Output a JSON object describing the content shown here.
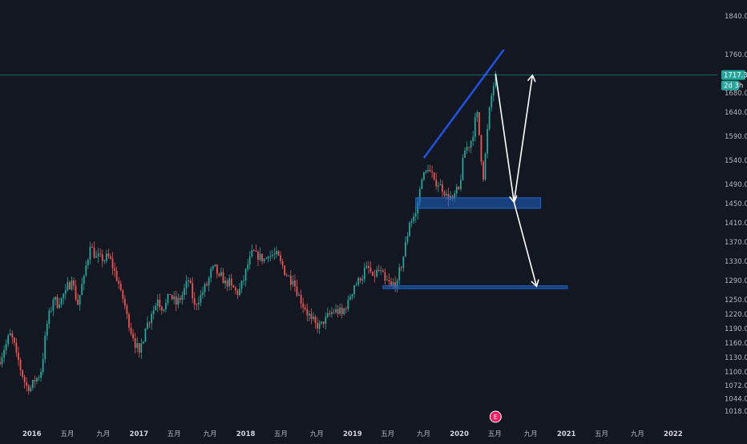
{
  "chart_data": {
    "type": "candlestick",
    "title": "",
    "xlabel": "",
    "ylabel": "",
    "ylim": [
      1000,
      1860
    ],
    "xlim": [
      "2015-09-14",
      "2022-06-01"
    ],
    "grid": false,
    "legend": "none",
    "y_ticks": [
      {
        "value": 1840,
        "label": "1840.00"
      },
      {
        "value": 1760,
        "label": "1760.00"
      },
      {
        "value": 1680,
        "label": "1680.00"
      },
      {
        "value": 1640,
        "label": "1640.00"
      },
      {
        "value": 1590,
        "label": "1590.00"
      },
      {
        "value": 1540,
        "label": "1540.00"
      },
      {
        "value": 1490,
        "label": "1490.00"
      },
      {
        "value": 1450,
        "label": "1450.00"
      },
      {
        "value": 1410,
        "label": "1410.00"
      },
      {
        "value": 1370,
        "label": "1370.00"
      },
      {
        "value": 1330,
        "label": "1330.00"
      },
      {
        "value": 1290,
        "label": "1290.00"
      },
      {
        "value": 1250,
        "label": "1250.00"
      },
      {
        "value": 1220,
        "label": "1220.00"
      },
      {
        "value": 1190,
        "label": "1190.00"
      },
      {
        "value": 1160,
        "label": "1160.00"
      },
      {
        "value": 1130,
        "label": "1130.00"
      },
      {
        "value": 1100,
        "label": "1100.00"
      },
      {
        "value": 1072,
        "label": "1072.00"
      },
      {
        "value": 1044,
        "label": "1044.00"
      },
      {
        "value": 1018,
        "label": "1018.00"
      }
    ],
    "x_ticks": [
      {
        "date": "2015-09-01",
        "label": "九月",
        "bold": false
      },
      {
        "date": "2016-01-01",
        "label": "2016",
        "bold": true
      },
      {
        "date": "2016-05-01",
        "label": "五月",
        "bold": false
      },
      {
        "date": "2016-09-01",
        "label": "九月",
        "bold": false
      },
      {
        "date": "2017-01-01",
        "label": "2017",
        "bold": true
      },
      {
        "date": "2017-05-01",
        "label": "五月",
        "bold": false
      },
      {
        "date": "2017-09-01",
        "label": "九月",
        "bold": false
      },
      {
        "date": "2018-01-01",
        "label": "2018",
        "bold": true
      },
      {
        "date": "2018-05-01",
        "label": "五月",
        "bold": false
      },
      {
        "date": "2018-09-01",
        "label": "九月",
        "bold": false
      },
      {
        "date": "2019-01-01",
        "label": "2019",
        "bold": true
      },
      {
        "date": "2019-05-01",
        "label": "五月",
        "bold": false
      },
      {
        "date": "2019-09-01",
        "label": "九月",
        "bold": false
      },
      {
        "date": "2020-01-01",
        "label": "2020",
        "bold": true
      },
      {
        "date": "2020-05-01",
        "label": "五月",
        "bold": false
      },
      {
        "date": "2020-09-01",
        "label": "九月",
        "bold": false
      },
      {
        "date": "2021-01-01",
        "label": "2021",
        "bold": true
      },
      {
        "date": "2021-05-01",
        "label": "五月",
        "bold": false
      },
      {
        "date": "2021-09-01",
        "label": "九月",
        "bold": false
      },
      {
        "date": "2022-01-01",
        "label": "2022",
        "bold": true
      }
    ],
    "current_price": {
      "value": 1717.3,
      "label": "1717.30",
      "countdown": "2d 3h"
    },
    "series": [
      {
        "values": [
          [
            "2015-09-14",
            1120,
            1145
          ],
          [
            "2015-10-05",
            1145,
            1180
          ],
          [
            "2015-10-26",
            1180,
            1140
          ],
          [
            "2015-11-16",
            1140,
            1090
          ],
          [
            "2015-12-07",
            1090,
            1060
          ],
          [
            "2015-12-28",
            1060,
            1080
          ],
          [
            "2016-01-18",
            1080,
            1100
          ],
          [
            "2016-02-08",
            1100,
            1200
          ],
          [
            "2016-02-29",
            1200,
            1250
          ],
          [
            "2016-03-21",
            1250,
            1240
          ],
          [
            "2016-04-11",
            1240,
            1270
          ],
          [
            "2016-05-02",
            1270,
            1290
          ],
          [
            "2016-05-23",
            1290,
            1240
          ],
          [
            "2016-06-13",
            1240,
            1300
          ],
          [
            "2016-07-04",
            1300,
            1360
          ],
          [
            "2016-07-25",
            1360,
            1340
          ],
          [
            "2016-08-15",
            1340,
            1330
          ],
          [
            "2016-09-05",
            1330,
            1340
          ],
          [
            "2016-09-26",
            1340,
            1310
          ],
          [
            "2016-10-17",
            1310,
            1270
          ],
          [
            "2016-11-07",
            1270,
            1220
          ],
          [
            "2016-11-28",
            1220,
            1170
          ],
          [
            "2016-12-19",
            1170,
            1140
          ],
          [
            "2017-01-09",
            1140,
            1190
          ],
          [
            "2017-01-30",
            1190,
            1220
          ],
          [
            "2017-02-20",
            1220,
            1250
          ],
          [
            "2017-03-13",
            1250,
            1230
          ],
          [
            "2017-04-03",
            1230,
            1260
          ],
          [
            "2017-04-24",
            1260,
            1240
          ],
          [
            "2017-05-15",
            1240,
            1260
          ],
          [
            "2017-06-05",
            1260,
            1290
          ],
          [
            "2017-06-26",
            1290,
            1240
          ],
          [
            "2017-07-17",
            1240,
            1260
          ],
          [
            "2017-08-07",
            1260,
            1280
          ],
          [
            "2017-08-28",
            1280,
            1320
          ],
          [
            "2017-09-18",
            1320,
            1300
          ],
          [
            "2017-10-09",
            1300,
            1290
          ],
          [
            "2017-10-30",
            1290,
            1280
          ],
          [
            "2017-11-20",
            1280,
            1260
          ],
          [
            "2017-12-11",
            1260,
            1290
          ],
          [
            "2018-01-01",
            1290,
            1340
          ],
          [
            "2018-01-22",
            1340,
            1350
          ],
          [
            "2018-02-12",
            1350,
            1330
          ],
          [
            "2018-03-05",
            1330,
            1340
          ],
          [
            "2018-03-26",
            1340,
            1345
          ],
          [
            "2018-04-16",
            1345,
            1330
          ],
          [
            "2018-05-07",
            1330,
            1300
          ],
          [
            "2018-05-28",
            1300,
            1290
          ],
          [
            "2018-06-18",
            1290,
            1260
          ],
          [
            "2018-07-09",
            1260,
            1230
          ],
          [
            "2018-07-30",
            1230,
            1210
          ],
          [
            "2018-08-20",
            1210,
            1190
          ],
          [
            "2018-09-10",
            1190,
            1200
          ],
          [
            "2018-10-01",
            1200,
            1220
          ],
          [
            "2018-10-22",
            1220,
            1230
          ],
          [
            "2018-11-12",
            1230,
            1220
          ],
          [
            "2018-12-03",
            1220,
            1250
          ],
          [
            "2018-12-24",
            1250,
            1280
          ],
          [
            "2019-01-14",
            1280,
            1290
          ],
          [
            "2019-02-04",
            1290,
            1320
          ],
          [
            "2019-02-25",
            1320,
            1300
          ],
          [
            "2019-03-18",
            1300,
            1310
          ],
          [
            "2019-04-08",
            1310,
            1290
          ],
          [
            "2019-04-29",
            1290,
            1280
          ],
          [
            "2019-05-20",
            1280,
            1290
          ],
          [
            "2019-06-10",
            1290,
            1340
          ],
          [
            "2019-07-01",
            1340,
            1410
          ],
          [
            "2019-07-22",
            1410,
            1430
          ],
          [
            "2019-08-12",
            1430,
            1500
          ],
          [
            "2019-09-02",
            1500,
            1520
          ],
          [
            "2019-09-23",
            1520,
            1500
          ],
          [
            "2019-10-14",
            1500,
            1490
          ],
          [
            "2019-11-04",
            1490,
            1470
          ],
          [
            "2019-11-25",
            1470,
            1460
          ],
          [
            "2019-12-16",
            1460,
            1480
          ],
          [
            "2020-01-06",
            1480,
            1560
          ],
          [
            "2020-01-27",
            1560,
            1580
          ],
          [
            "2020-02-17",
            1580,
            1640
          ],
          [
            "2020-03-09",
            1640,
            1500
          ],
          [
            "2020-03-30",
            1500,
            1650
          ],
          [
            "2020-04-20",
            1650,
            1720
          ]
        ]
      }
    ],
    "annotations": [
      {
        "type": "trendline",
        "color": "#1e53e5",
        "from": [
          "2019-09-02",
          1545
        ],
        "to": [
          "2020-06-01",
          1770
        ]
      },
      {
        "type": "zone",
        "color": "#1e63c8",
        "from_date": "2019-08-05",
        "to_date": "2020-10-05",
        "y_low": 1440,
        "y_high": 1462
      },
      {
        "type": "zone",
        "color": "#1e63c8",
        "from_date": "2019-04-15",
        "to_date": "2021-01-04",
        "y_low": 1273,
        "y_high": 1279
      },
      {
        "type": "arrow",
        "color": "#ffffff",
        "from": [
          "2020-05-04",
          1720
        ],
        "to": [
          "2020-07-06",
          1453
        ]
      },
      {
        "type": "arrow",
        "color": "#ffffff",
        "from": [
          "2020-07-06",
          1453
        ],
        "to": [
          "2020-09-07",
          1717
        ]
      },
      {
        "type": "arrow",
        "color": "#ffffff",
        "from": [
          "2020-07-06",
          1453
        ],
        "to": [
          "2020-09-21",
          1278
        ]
      }
    ],
    "colors": {
      "background": "#131722",
      "up": "#26a69a",
      "down": "#ef5350",
      "price_line": "#26a69a",
      "axis_text": "#b2b5be"
    },
    "event_marker": {
      "label": "E",
      "date": "2020-05-04"
    }
  }
}
